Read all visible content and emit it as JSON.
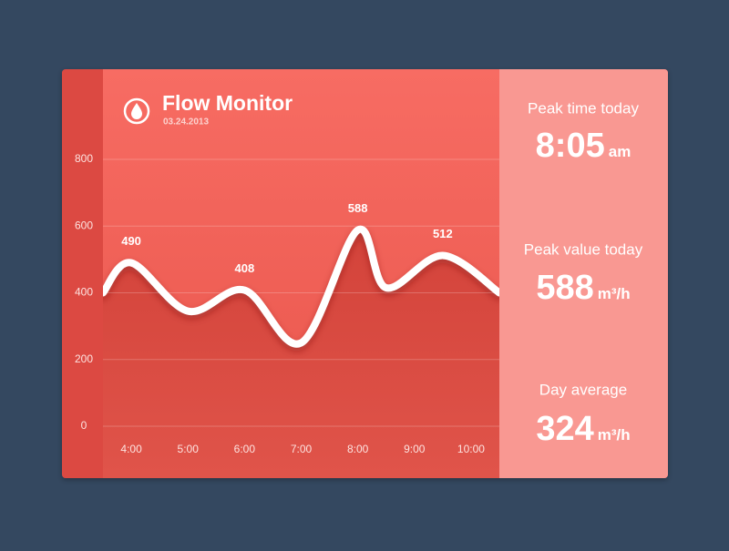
{
  "chart_data": {
    "type": "line",
    "title": "Flow Monitor",
    "subtitle": "03.24.2013",
    "x": [
      3.5,
      4,
      5,
      6,
      7,
      8,
      8.5,
      9.5,
      10.5
    ],
    "values": [
      400,
      490,
      345,
      408,
      250,
      588,
      415,
      512,
      400
    ],
    "color": "#ffffff",
    "xlim": [
      3.5,
      10.5
    ],
    "xticks": [
      {
        "value": 4,
        "label": "4:00"
      },
      {
        "value": 5,
        "label": "5:00"
      },
      {
        "value": 6,
        "label": "6:00"
      },
      {
        "value": 7,
        "label": "7:00"
      },
      {
        "value": 8,
        "label": "8:00"
      },
      {
        "value": 9,
        "label": "9:00"
      },
      {
        "value": 10,
        "label": "10:00"
      }
    ],
    "ylim": [
      0,
      800
    ],
    "yticks": [
      0,
      200,
      400,
      600,
      800
    ],
    "grid": true
  },
  "stats": [
    {
      "label": "Peak time today",
      "value": "8:05",
      "unit": "am"
    },
    {
      "label": "Peak value today",
      "value": 588,
      "unit": "m³/h"
    },
    {
      "label": "Day average",
      "value": 324,
      "unit": "m³/h"
    }
  ]
}
